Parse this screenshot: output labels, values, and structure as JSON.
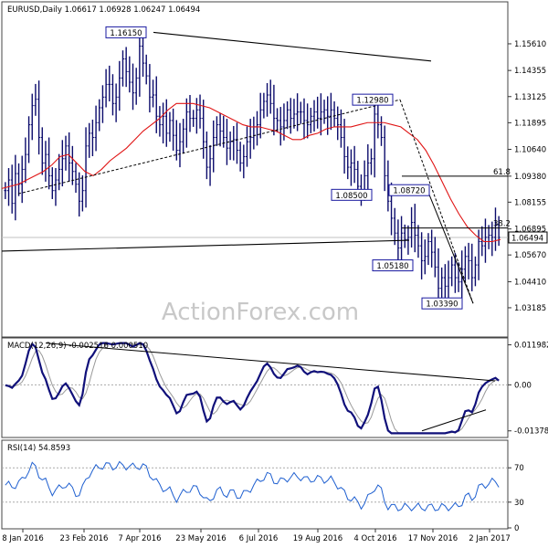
{
  "chart_data": {
    "type": "financial",
    "main": {
      "header": "EURUSD,Daily  1.06617 1.06928 1.06247 1.06494",
      "ylim": [
        1.0185,
        1.175
      ],
      "y_ticks": [
        "1.15610",
        "1.14355",
        "1.13125",
        "1.11895",
        "1.10640",
        "1.09380",
        "1.08155",
        "1.06895",
        "1.05670",
        "1.04410",
        "1.03185"
      ],
      "last_price": "1.06494",
      "watermark": "ActionForex.com",
      "price_labels": [
        {
          "text": "1.16150",
          "x": 29,
          "price": 1.1615
        },
        {
          "text": "1.12980",
          "x": 93,
          "price": 1.1298
        },
        {
          "text": "1.08500",
          "x": 86,
          "price": 1.085
        },
        {
          "text": "1.08720",
          "x": 99,
          "price": 1.0872
        },
        {
          "text": "1.05180",
          "x": 97,
          "price": 1.0518
        },
        {
          "text": "1.03390",
          "x": 116,
          "price": 1.0339
        }
      ],
      "fib_levels": [
        {
          "text": "61.8",
          "price": 1.0938
        },
        {
          "text": "38.2",
          "price": 1.0694
        }
      ],
      "close": [
        1.087,
        1.092,
        1.081,
        1.095,
        1.09,
        1.097,
        1.104,
        1.118,
        1.127,
        1.13,
        1.112,
        1.1,
        1.104,
        1.094,
        1.087,
        1.092,
        1.097,
        1.102,
        1.108,
        1.1,
        1.096,
        1.09,
        1.082,
        1.087,
        1.108,
        1.114,
        1.112,
        1.119,
        1.126,
        1.131,
        1.137,
        1.137,
        1.128,
        1.131,
        1.14,
        1.149,
        1.143,
        1.138,
        1.133,
        1.14,
        1.155,
        1.147,
        1.141,
        1.131,
        1.132,
        1.122,
        1.118,
        1.122,
        1.114,
        1.12,
        1.113,
        1.106,
        1.11,
        1.116,
        1.124,
        1.121,
        1.121,
        1.125,
        1.121,
        1.11,
        1.098,
        1.102,
        1.112,
        1.118,
        1.115,
        1.112,
        1.107,
        1.11,
        1.111,
        1.106,
        1.1,
        1.103,
        1.11,
        1.112,
        1.117,
        1.118,
        1.125,
        1.129,
        1.132,
        1.128,
        1.121,
        1.12,
        1.117,
        1.12,
        1.125,
        1.121,
        1.123,
        1.124,
        1.124,
        1.12,
        1.118,
        1.122,
        1.124,
        1.121,
        1.124,
        1.125,
        1.122,
        1.125,
        1.121,
        1.118,
        1.112,
        1.103,
        1.098,
        1.1,
        1.097,
        1.089,
        1.087,
        1.094,
        1.1,
        1.102,
        1.123,
        1.118,
        1.112,
        1.094,
        1.082,
        1.074,
        1.067,
        1.06,
        1.067,
        1.064,
        1.065,
        1.072,
        1.066,
        1.061,
        1.054,
        1.056,
        1.063,
        1.058,
        1.051,
        1.041,
        1.046,
        1.042,
        1.046,
        1.052,
        1.046,
        1.044,
        1.05,
        1.056,
        1.054,
        1.046,
        1.052,
        1.063,
        1.061,
        1.065,
        1.066,
        1.065,
        1.071,
        1.065
      ],
      "ma": [
        1.088,
        1.089,
        1.09,
        1.092,
        1.094,
        1.096,
        1.099,
        1.103,
        1.104,
        1.1,
        1.096,
        1.094,
        1.097,
        1.101,
        1.104,
        1.107,
        1.111,
        1.115,
        1.118,
        1.121,
        1.125,
        1.128,
        1.128,
        1.128,
        1.127,
        1.126,
        1.124,
        1.122,
        1.12,
        1.118,
        1.117,
        1.117,
        1.116,
        1.115,
        1.113,
        1.111,
        1.111,
        1.113,
        1.114,
        1.116,
        1.117,
        1.117,
        1.117,
        1.118,
        1.119,
        1.119,
        1.119,
        1.118,
        1.117,
        1.114,
        1.111,
        1.106,
        1.099,
        1.091,
        1.083,
        1.076,
        1.07,
        1.066,
        1.063,
        1.063,
        1.064
      ],
      "ma_x": [
        0,
        10,
        20,
        30,
        40,
        50,
        60,
        70,
        80,
        90,
        100,
        110,
        120,
        130,
        140,
        150,
        160,
        170,
        180,
        190,
        200,
        210,
        220,
        230,
        240,
        250,
        260,
        270,
        280,
        290,
        300,
        310,
        320,
        330,
        340,
        350,
        360,
        370,
        380,
        390,
        400,
        410,
        420,
        430,
        440,
        450,
        460,
        470,
        480,
        490,
        500,
        510,
        520,
        530,
        540,
        550,
        560,
        570,
        580,
        590,
        600
      ],
      "x_ticks": [
        "8 Jan 2016",
        "23 Feb 2016",
        "7 Apr 2016",
        "23 May 2016",
        "6 Jul 2016",
        "19 Aug 2016",
        "4 Oct 2016",
        "17 Nov 2016",
        "2 Jan 2017"
      ]
    },
    "macd": {
      "header": "MACD(12,26,9) -0.002516 0.000510",
      "y_ticks": [
        "0.011982",
        "0.00",
        "-0.013788"
      ],
      "ylim": [
        -0.0155,
        0.0135
      ]
    },
    "rsi": {
      "header": "RSI(14) 54.8593",
      "y_ticks": [
        "70",
        "30",
        "0"
      ],
      "ylim": [
        0,
        100
      ]
    }
  }
}
